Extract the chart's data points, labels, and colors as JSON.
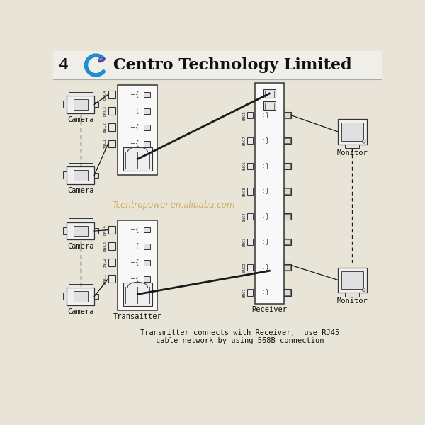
{
  "title": "Centro Technology Limited",
  "page_number": "4",
  "bg_color": "#eeeae0",
  "header_bg": "#f0eee8",
  "watermark": "Tcentropower.en.alibaba.com",
  "bottom_text_line1": "Transmitter connects with Receiver,  use RJ45",
  "bottom_text_line2": "cable network by using 568B connection",
  "camera_label": "Camera",
  "transmitter_label": "Transaitter",
  "receiver_label": "Receiver",
  "monitor_label": "Monitor",
  "line_color": "#1a1a1a",
  "box_edge": "#444444",
  "text_color": "#111111",
  "diagram_bg": "#e8e4d8",
  "header_line_color": "#888888",
  "logo_blue": "#1a8fd1",
  "logo_purple": "#5040a0"
}
